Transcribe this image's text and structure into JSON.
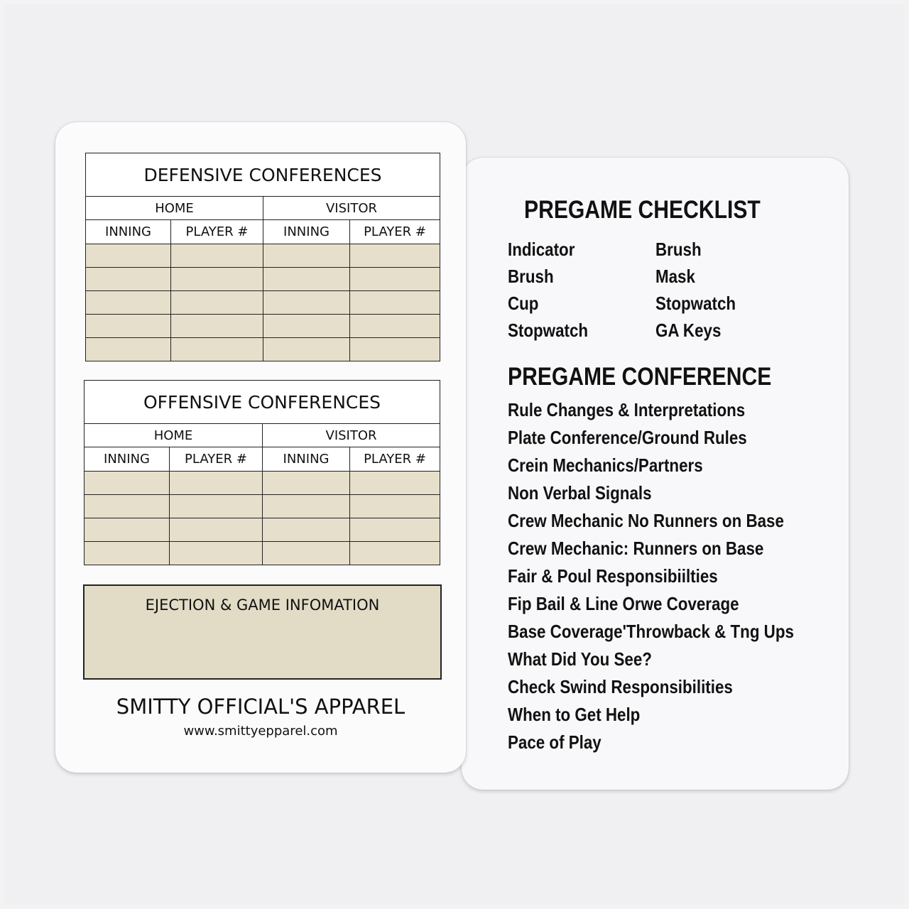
{
  "left_card": {
    "defensive": {
      "title": "DEFENSIVE CONFERENCES",
      "home": "HOME",
      "visitor": "VISITOR",
      "columns": [
        "INNING",
        "PLAYER #",
        "INNING",
        "PLAYER #"
      ],
      "row_count": 5
    },
    "offensive": {
      "title": "OFFENSIVE CONFERENCES",
      "home": "HOME",
      "visitor": "VISITOR",
      "columns": [
        "INNING",
        "PLAYER #",
        "INNING",
        "PLAYER #"
      ],
      "row_count": 4
    },
    "ejection_title": "EJECTION & GAME INFOMATION",
    "brand": "SMITTY OFFICIAL'S APPAREL",
    "url": "www.smittyepparel.com",
    "cell_color": "#e6dfcb"
  },
  "right_card": {
    "checklist_title": "PREGAME CHECKLIST",
    "checklist_col1": [
      "Indicator",
      "Brush",
      "Cup",
      "Stopwatch"
    ],
    "checklist_col2": [
      "Brush",
      "Mask",
      "Stopwatch",
      "GA Keys"
    ],
    "conference_title": "PREGAME CONFERENCE",
    "conference_items": [
      "Rule Changes & Interpretations",
      "Plate Conference/Ground Rules",
      "Crein Mechanics/Partners",
      "Non Verbal Signals",
      "Crew Mechanic No Runners on Base",
      "Crew Mechanic: Runners on Base",
      "Fair & Poul Responsibiilties",
      "Fip Bail & Line Orwe Coverage",
      "Base Coverage'Throwback & Tng Ups",
      "What Did You See?",
      "Check Swind Responsibilities",
      "When to Get Help",
      "Pace of Play"
    ]
  }
}
